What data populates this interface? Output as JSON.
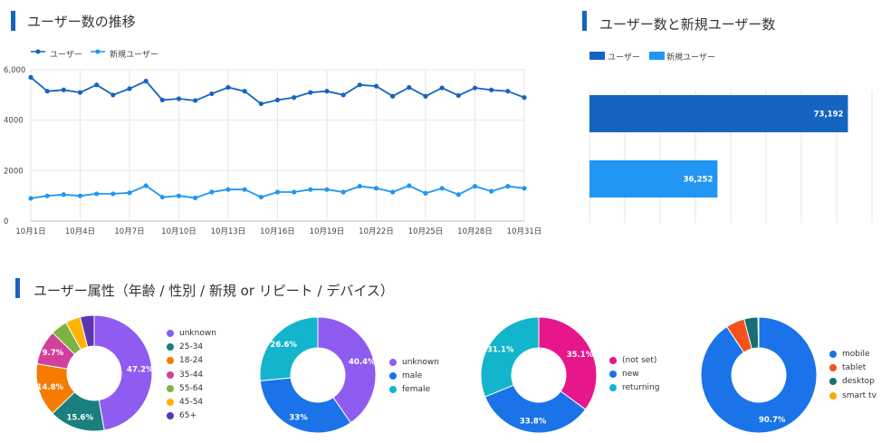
{
  "line_section": {
    "title": "ユーザー数の推移",
    "legend": [
      "ユーザー",
      "新規ユーザー"
    ],
    "colors": [
      "#1565c0",
      "#2196f3"
    ]
  },
  "bar_section": {
    "title": "ユーザー数と新規ユーザー数",
    "legend": [
      "ユーザー",
      "新規ユーザー"
    ],
    "colors": [
      "#1565c0",
      "#2196f3"
    ]
  },
  "pies_section": {
    "title": "ユーザー属性（年齢 / 性別 / 新規 or リピート / デバイス）"
  },
  "chart_data": [
    {
      "type": "line",
      "title": "ユーザー数の推移",
      "x": [
        "10月1日",
        "10月2日",
        "10月3日",
        "10月4日",
        "10月5日",
        "10月6日",
        "10月7日",
        "10月8日",
        "10月9日",
        "10月10日",
        "10月11日",
        "10月12日",
        "10月13日",
        "10月14日",
        "10月15日",
        "10月16日",
        "10月17日",
        "10月18日",
        "10月19日",
        "10月20日",
        "10月21日",
        "10月22日",
        "10月23日",
        "10月24日",
        "10月25日",
        "10月26日",
        "10月27日",
        "10月28日",
        "10月29日",
        "10月30日",
        "10月31日"
      ],
      "x_tick_labels": [
        "10月1日",
        "10月4日",
        "10月7日",
        "10月10日",
        "10月13日",
        "10月16日",
        "10月19日",
        "10月22日",
        "10月25日",
        "10月28日",
        "10月31日"
      ],
      "y_tick_labels": [
        "0",
        "2000",
        "4000",
        "6,000"
      ],
      "ylim": [
        0,
        6000
      ],
      "grid": true,
      "legend_position": "top-left",
      "series": [
        {
          "name": "ユーザー",
          "values": [
            5700,
            5150,
            5200,
            5100,
            5400,
            5000,
            5250,
            5550,
            4800,
            4850,
            4780,
            5050,
            5300,
            5150,
            4650,
            4800,
            4900,
            5100,
            5150,
            5000,
            5400,
            5350,
            4950,
            5300,
            4950,
            5280,
            4980,
            5280,
            5200,
            5150,
            4900
          ]
        },
        {
          "name": "新規ユーザー",
          "values": [
            900,
            1000,
            1050,
            1000,
            1080,
            1080,
            1120,
            1400,
            950,
            1000,
            920,
            1150,
            1250,
            1250,
            950,
            1150,
            1150,
            1250,
            1250,
            1150,
            1380,
            1300,
            1150,
            1400,
            1100,
            1300,
            1050,
            1380,
            1180,
            1380,
            1300
          ]
        }
      ]
    },
    {
      "type": "bar",
      "orientation": "horizontal",
      "title": "ユーザー数と新規ユーザー数",
      "categories": [
        "ユーザー",
        "新規ユーザー"
      ],
      "values": [
        73192,
        36252
      ],
      "value_labels": [
        "73,192",
        "36,252"
      ],
      "xlim": [
        0,
        80000
      ],
      "grid": true,
      "legend_position": "top-left"
    },
    {
      "type": "pie",
      "donut": true,
      "legend_position": "right",
      "labels": [
        "unknown",
        "25-34",
        "18-24",
        "35-44",
        "55-64",
        "45-54",
        "65+"
      ],
      "values": [
        47.2,
        15.6,
        14.8,
        9.7,
        4.6,
        4.2,
        3.9
      ],
      "value_labels": [
        "47.2%",
        "15.6%",
        "14.8%",
        "9.7%",
        "",
        "",
        ""
      ],
      "colors": [
        "#8e5cf0",
        "#1a7f7f",
        "#f57c00",
        "#d2409c",
        "#7cb342",
        "#ffb300",
        "#5e35b1"
      ]
    },
    {
      "type": "pie",
      "donut": true,
      "legend_position": "right",
      "labels": [
        "unknown",
        "male",
        "female"
      ],
      "values": [
        40.4,
        33.0,
        26.6
      ],
      "value_labels": [
        "40.4%",
        "33%",
        "26.6%"
      ],
      "colors": [
        "#8e5cf0",
        "#1a73e8",
        "#12b5cb"
      ]
    },
    {
      "type": "pie",
      "donut": true,
      "legend_position": "right",
      "labels": [
        "(not set)",
        "new",
        "returning"
      ],
      "values": [
        35.1,
        33.8,
        31.1
      ],
      "value_labels": [
        "35.1%",
        "33.8%",
        "31.1%"
      ],
      "colors": [
        "#e8168b",
        "#1a73e8",
        "#12b5cb"
      ]
    },
    {
      "type": "pie",
      "donut": true,
      "legend_position": "right",
      "labels": [
        "mobile",
        "tablet",
        "desktop",
        "smart tv"
      ],
      "values": [
        90.7,
        5.2,
        3.9,
        0.2
      ],
      "value_labels": [
        "90.7%",
        "",
        "",
        ""
      ],
      "colors": [
        "#1a73e8",
        "#f4511e",
        "#1a6e73",
        "#f9ab00"
      ]
    }
  ]
}
